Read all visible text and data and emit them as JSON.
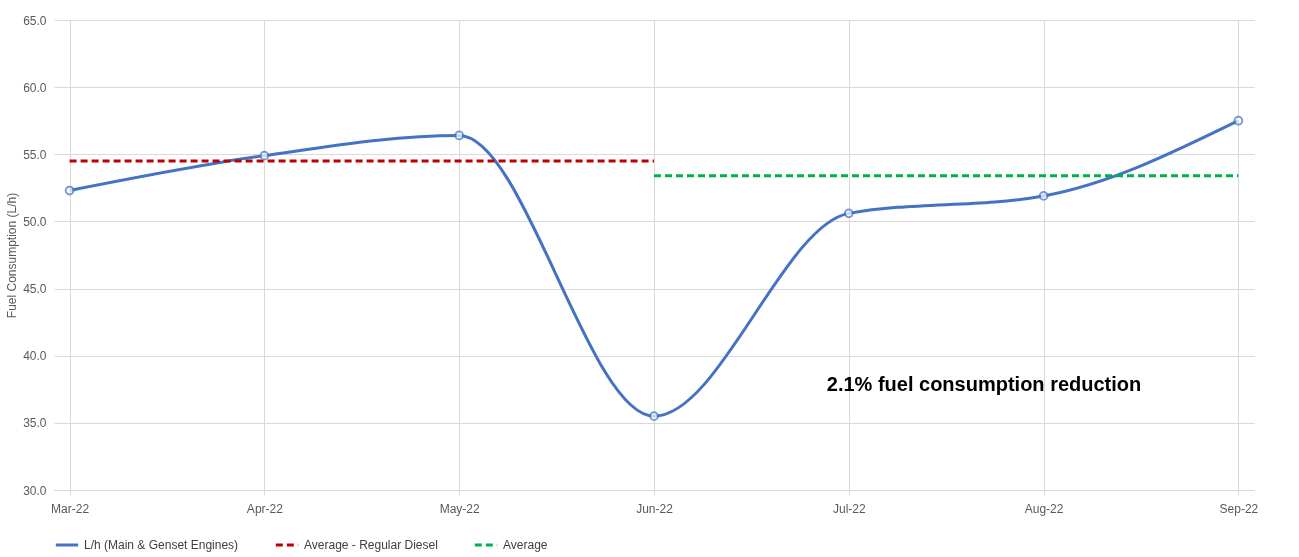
{
  "chart_data": {
    "type": "line",
    "ylabel": "Fuel Consumption (L/h)",
    "categories": [
      "Mar-22",
      "Apr-22",
      "May-22",
      "Jun-22",
      "Jul-22",
      "Aug-22",
      "Sep-22"
    ],
    "series": [
      {
        "name": "L/h (Main & Genset Engines)",
        "color": "#4472c4",
        "marker": "circle",
        "line_style": "solid",
        "values": [
          52.3,
          54.9,
          56.4,
          35.5,
          50.6,
          51.9,
          57.5
        ]
      },
      {
        "name": "Average - Regular Diesel",
        "color": "#c00000",
        "line_style": "dashed",
        "marker": "none",
        "values": [
          54.5,
          54.5,
          54.5,
          54.5,
          null,
          null,
          null
        ]
      },
      {
        "name": "Average",
        "color": "#00b050",
        "line_style": "dashed",
        "marker": "none",
        "values": [
          null,
          null,
          null,
          53.4,
          53.4,
          53.4,
          53.4
        ]
      }
    ],
    "ylim": [
      30,
      65
    ],
    "yticks": [
      {
        "value": 30,
        "label": "30.0"
      },
      {
        "value": 35,
        "label": "35.0"
      },
      {
        "value": 40,
        "label": "40.0"
      },
      {
        "value": 45,
        "label": "45.0"
      },
      {
        "value": 50,
        "label": "50.0"
      },
      {
        "value": 55,
        "label": "55.0"
      },
      {
        "value": 60,
        "label": "60.0"
      },
      {
        "value": 65,
        "label": "65.0"
      }
    ],
    "grid": true,
    "legend": "bottom",
    "annotations": [
      "2.1% fuel consumption reduction"
    ]
  }
}
